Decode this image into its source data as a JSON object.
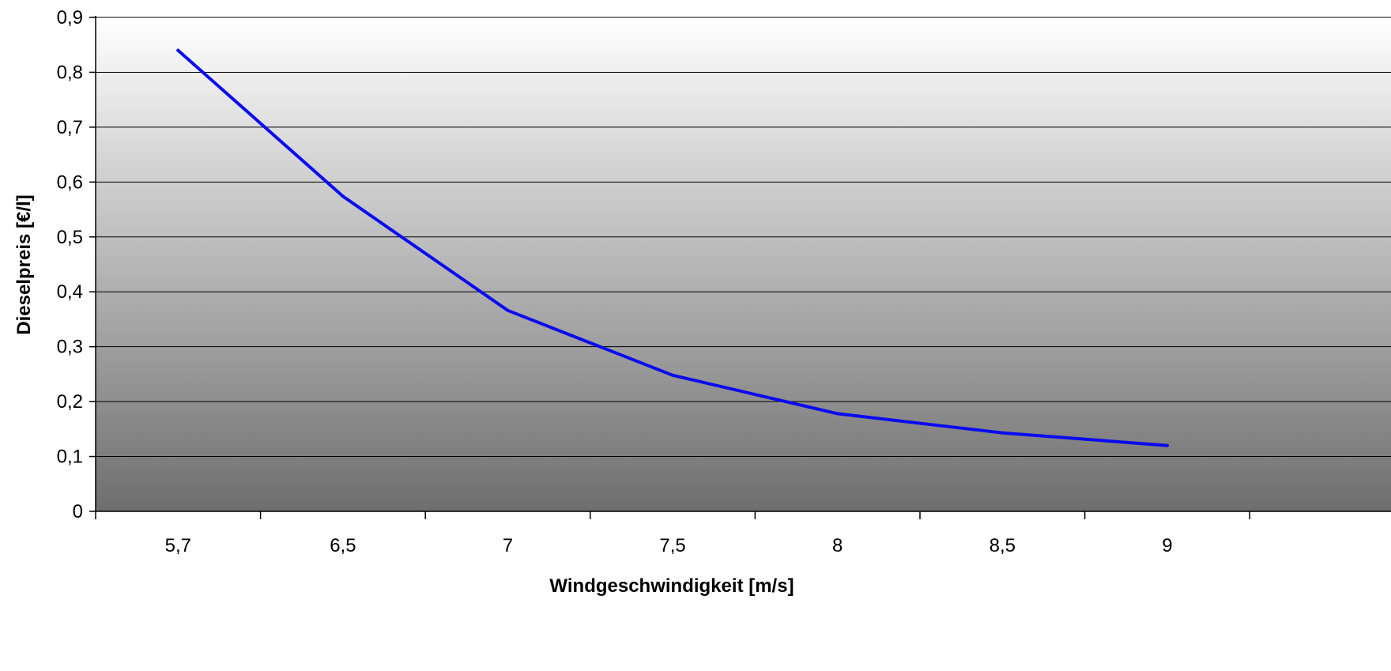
{
  "chart_data": {
    "type": "line",
    "title": "",
    "xlabel": "Windgeschwindigkeit [m/s]",
    "ylabel": "Dieselpreis [€/l]",
    "categories": [
      "5,7",
      "6,5",
      "7",
      "7,5",
      "8",
      "8,5",
      "9"
    ],
    "y_ticks": [
      "0",
      "0,1",
      "0,2",
      "0,3",
      "0,4",
      "0,5",
      "0,6",
      "0,7",
      "0,8",
      "0,9"
    ],
    "ylim": [
      0,
      0.9
    ],
    "grid": true,
    "legend": "none",
    "series": [
      {
        "values": [
          0.84,
          0.574,
          0.366,
          0.248,
          0.178,
          0.143,
          0.12
        ]
      }
    ],
    "colors": {
      "line": "#0a0af0",
      "grid": "#000000",
      "plot_top": "#ffffff",
      "plot_bottom": "#6e6e6e"
    }
  }
}
